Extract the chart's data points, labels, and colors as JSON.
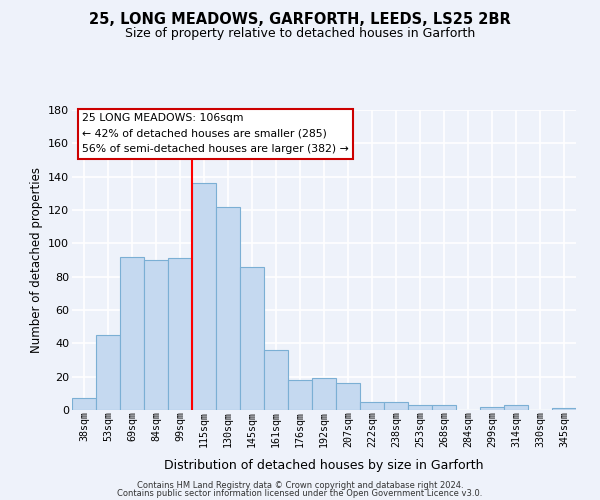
{
  "title": "25, LONG MEADOWS, GARFORTH, LEEDS, LS25 2BR",
  "subtitle": "Size of property relative to detached houses in Garforth",
  "xlabel": "Distribution of detached houses by size in Garforth",
  "ylabel": "Number of detached properties",
  "bar_labels": [
    "38sqm",
    "53sqm",
    "69sqm",
    "84sqm",
    "99sqm",
    "115sqm",
    "130sqm",
    "145sqm",
    "161sqm",
    "176sqm",
    "192sqm",
    "207sqm",
    "222sqm",
    "238sqm",
    "253sqm",
    "268sqm",
    "284sqm",
    "299sqm",
    "314sqm",
    "330sqm",
    "345sqm"
  ],
  "bar_values": [
    7,
    45,
    92,
    90,
    91,
    136,
    122,
    86,
    36,
    18,
    19,
    16,
    5,
    5,
    3,
    3,
    0,
    2,
    3,
    0,
    1
  ],
  "bar_color": "#c5d9f0",
  "bar_edge_color": "#7bafd4",
  "red_line_x": 4.5,
  "ylim": [
    0,
    180
  ],
  "yticks": [
    0,
    20,
    40,
    60,
    80,
    100,
    120,
    140,
    160,
    180
  ],
  "annotation_title": "25 LONG MEADOWS: 106sqm",
  "annotation_line1": "← 42% of detached houses are smaller (285)",
  "annotation_line2": "56% of semi-detached houses are larger (382) →",
  "footer_line1": "Contains HM Land Registry data © Crown copyright and database right 2024.",
  "footer_line2": "Contains public sector information licensed under the Open Government Licence v3.0.",
  "background_color": "#eef2fa",
  "plot_bg_color": "#eef2fa",
  "grid_color": "#ffffff"
}
